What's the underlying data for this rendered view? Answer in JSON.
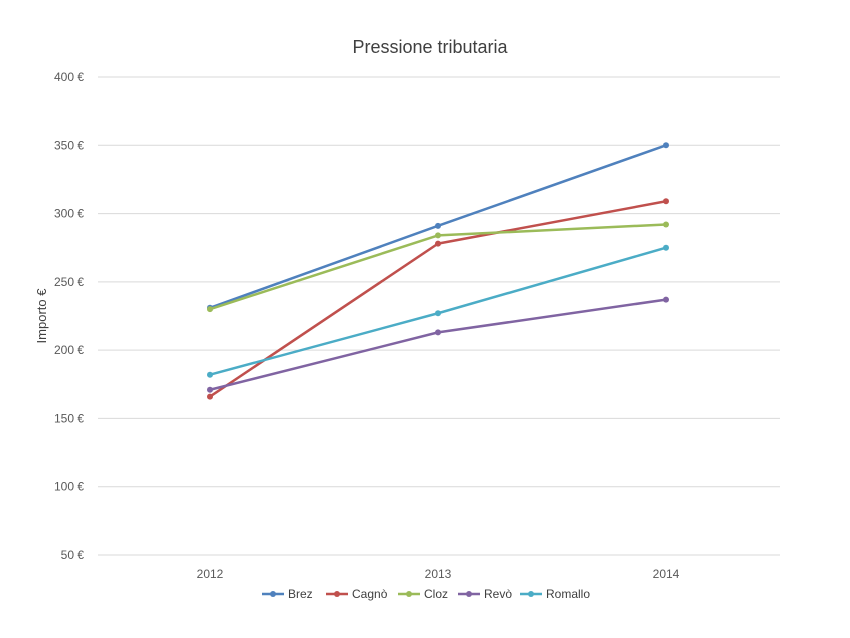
{
  "chart_data": {
    "type": "line",
    "title": "Pressione tributaria",
    "xlabel": "",
    "ylabel": "Importo €",
    "categories": [
      "2012",
      "2013",
      "2014"
    ],
    "ylim": [
      50,
      400
    ],
    "yticks": [
      50,
      100,
      150,
      200,
      250,
      300,
      350,
      400
    ],
    "ytick_labels": [
      "50 €",
      "100 €",
      "150 €",
      "200 €",
      "250 €",
      "300 €",
      "350 €",
      "400 €"
    ],
    "grid": true,
    "legend_position": "bottom",
    "series": [
      {
        "name": "Brez",
        "color": "#4f81bd",
        "values": [
          231,
          291,
          350
        ]
      },
      {
        "name": "Cagnò",
        "color": "#c0504d",
        "values": [
          166,
          278,
          309
        ]
      },
      {
        "name": "Cloz",
        "color": "#9bbb59",
        "values": [
          230,
          284,
          292
        ]
      },
      {
        "name": "Revò",
        "color": "#8064a2",
        "values": [
          171,
          213,
          237
        ]
      },
      {
        "name": "Romallo",
        "color": "#4bacc6",
        "values": [
          182,
          227,
          275
        ]
      }
    ]
  }
}
